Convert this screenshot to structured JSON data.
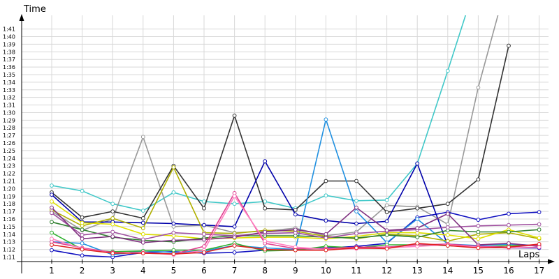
{
  "chart_data": {
    "type": "line",
    "xlabel": "Laps",
    "ylabel": "Time",
    "x": [
      1,
      2,
      3,
      4,
      5,
      6,
      7,
      8,
      9,
      10,
      11,
      12,
      13,
      14,
      15,
      16,
      17
    ],
    "ylim": [
      70.4,
      102.8
    ],
    "y_ticks": [
      71,
      72,
      73,
      74,
      75,
      76,
      77,
      78,
      79,
      80,
      81,
      82,
      83,
      84,
      85,
      86,
      87,
      88,
      89,
      90,
      91,
      92,
      93,
      94,
      95,
      96,
      97,
      98,
      99,
      100,
      101
    ],
    "y_tick_labels": [
      "1:11",
      "1:12",
      "1:13",
      "1:14",
      "1:15",
      "1:16",
      "1:17",
      "1:18",
      "1:19",
      "1:20",
      "1:21",
      "1:22",
      "1:23",
      "1:24",
      "1:25",
      "1:26",
      "1:27",
      "1:28",
      "1:29",
      "1:30",
      "1:31",
      "1:32",
      "1:33",
      "1:34",
      "1:35",
      "1:36",
      "1:37",
      "1:38",
      "1:39",
      "1:40",
      "1:41"
    ],
    "grid": true,
    "series": [
      {
        "color": "#40c8c8",
        "values": [
          80.4,
          79.7,
          78.0,
          77.1,
          79.5,
          78.3,
          78.0,
          78.3,
          77.4,
          79.1,
          78.4,
          78.5,
          83.3,
          95.5,
          108,
          null,
          null
        ]
      },
      {
        "color": "#999999",
        "values": [
          77.0,
          74.5,
          76.0,
          86.8,
          75.0,
          75.2,
          74.2,
          74.4,
          74.8,
          73.8,
          74.3,
          77.8,
          77.6,
          75.3,
          93.3,
          108,
          null
        ]
      },
      {
        "color": "#333333",
        "values": [
          79.5,
          76.2,
          77.0,
          76.1,
          83.0,
          77.4,
          89.6,
          77.4,
          77.2,
          81.0,
          81.0,
          76.9,
          77.4,
          78.0,
          81.2,
          98.8,
          null
        ]
      },
      {
        "color": "#1010c0",
        "values": [
          71.9,
          71.2,
          71.0,
          71.6,
          71.7,
          71.5,
          71.6,
          71.9,
          72.0,
          72.2,
          72.4,
          72.8,
          76.2,
          76.9,
          75.9,
          76.7,
          76.9
        ]
      },
      {
        "color": "#0000aa",
        "values": [
          79.2,
          75.6,
          75.6,
          75.5,
          75.4,
          75.2,
          75.0,
          83.6,
          76.6,
          75.8,
          75.4,
          75.7,
          83.3,
          72.5,
          72.3,
          72.2,
          72.2
        ]
      },
      {
        "color": "#2090e0",
        "values": [
          73.0,
          72.8,
          71.3,
          71.8,
          71.6,
          71.8,
          72.5,
          72.2,
          72.0,
          89.1,
          77.0,
          72.9,
          76.0,
          72.7,
          72.5,
          72.7,
          72.5
        ]
      },
      {
        "color": "#b0b000",
        "values": [
          77.2,
          75.1,
          76.1,
          74.8,
          82.8,
          74.2,
          74.1,
          74.5,
          74.4,
          73.7,
          73.4,
          74.0,
          73.8,
          73.1,
          74.0,
          74.2,
          73.4
        ]
      },
      {
        "color": "#e0e000",
        "values": [
          78.3,
          75.5,
          75.3,
          74.0,
          73.8,
          73.4,
          73.5,
          73.6,
          73.6,
          73.4,
          73.7,
          74.2,
          74.2,
          73.9,
          73.4,
          74.6,
          73.5
        ]
      },
      {
        "color": "#30b030",
        "values": [
          74.2,
          72.0,
          71.7,
          71.8,
          71.9,
          71.9,
          72.8,
          71.8,
          71.9,
          72.4,
          72.2,
          72.6,
          72.6,
          72.5,
          72.3,
          72.5,
          72.5
        ]
      },
      {
        "color": "#308030",
        "values": [
          75.6,
          74.6,
          73.6,
          73.2,
          73.0,
          73.5,
          73.8,
          73.8,
          73.8,
          73.6,
          73.5,
          73.9,
          73.6,
          74.5,
          74.3,
          74.3,
          74.6
        ]
      },
      {
        "color": "#a050a0",
        "values": [
          76.8,
          73.9,
          74.3,
          73.3,
          74.2,
          74.0,
          73.8,
          74.1,
          74.2,
          73.5,
          74.1,
          74.4,
          74.6,
          74.9,
          75.1,
          75.2,
          75.3
        ]
      },
      {
        "color": "#803080",
        "values": [
          77.5,
          73.4,
          73.7,
          72.9,
          73.2,
          73.3,
          73.6,
          74.3,
          74.6,
          74.0,
          77.5,
          74.5,
          74.8,
          76.7,
          72.6,
          72.8,
          72.4
        ]
      },
      {
        "color": "#e04090",
        "values": [
          73.0,
          72.2,
          71.6,
          71.5,
          71.4,
          72.4,
          79.4,
          72.8,
          72.1,
          72.1,
          72.3,
          72.3,
          72.6,
          72.7,
          72.4,
          72.3,
          72.6
        ]
      },
      {
        "color": "#ff80c0",
        "values": [
          73.4,
          72.1,
          71.5,
          71.6,
          71.3,
          71.9,
          79.0,
          73.1,
          72.3,
          72.0,
          72.1,
          72.2,
          72.4,
          72.6,
          72.3,
          72.2,
          72.3
        ]
      },
      {
        "color": "#e02020",
        "values": [
          72.6,
          72.0,
          71.5,
          71.5,
          71.4,
          71.6,
          72.5,
          72.0,
          71.9,
          71.9,
          72.2,
          72.1,
          72.8,
          72.5,
          72.2,
          72.3,
          72.7
        ]
      }
    ]
  }
}
